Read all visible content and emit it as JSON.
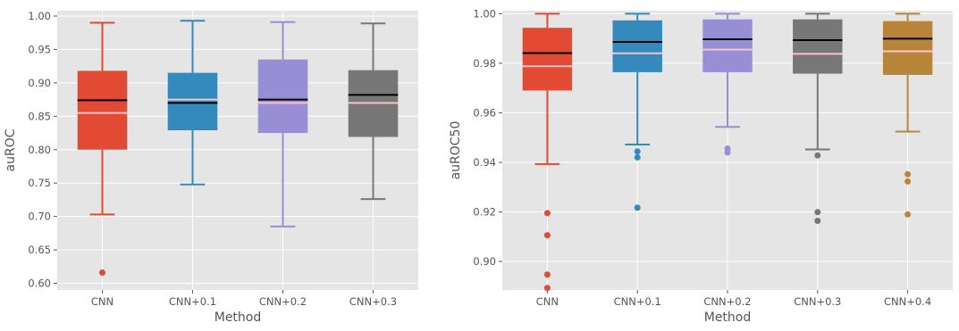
{
  "figure": {
    "background": "#ffffff",
    "panel_background": "#e5e5e5",
    "grid_color": "#ffffff",
    "style": "ggplot"
  },
  "chart_data": [
    {
      "type": "box",
      "xlabel": "Method",
      "ylabel": "auROC",
      "ylim": [
        0.59,
        1.008
      ],
      "yticks": [
        "0.60",
        "0.65",
        "0.70",
        "0.75",
        "0.80",
        "0.85",
        "0.90",
        "0.95",
        "1.00"
      ],
      "ytick_values": [
        0.6,
        0.65,
        0.7,
        0.75,
        0.8,
        0.85,
        0.9,
        0.95,
        1.0
      ],
      "grid": true,
      "median_color": "#000000",
      "mean_color": "#ffc0cb",
      "boxes": [
        {
          "label": "CNN",
          "color": "#e24a33",
          "whisker_low": 0.703,
          "q1": 0.8,
          "median": 0.874,
          "mean": 0.855,
          "q3": 0.918,
          "whisker_high": 0.99,
          "outliers": [
            0.616
          ]
        },
        {
          "label": "CNN+0.1",
          "color": "#348abd",
          "whisker_low": 0.748,
          "q1": 0.829,
          "median": 0.87,
          "mean": 0.875,
          "q3": 0.915,
          "whisker_high": 0.993,
          "outliers": []
        },
        {
          "label": "CNN+0.2",
          "color": "#988ed5",
          "whisker_low": 0.685,
          "q1": 0.825,
          "median": 0.875,
          "mean": 0.87,
          "q3": 0.935,
          "whisker_high": 0.991,
          "outliers": []
        },
        {
          "label": "CNN+0.3",
          "color": "#777777",
          "whisker_low": 0.726,
          "q1": 0.819,
          "median": 0.882,
          "mean": 0.87,
          "q3": 0.919,
          "whisker_high": 0.989,
          "outliers": []
        }
      ]
    },
    {
      "type": "box",
      "xlabel": "Method",
      "ylabel": "auROC50",
      "ylim": [
        0.8885,
        1.0012
      ],
      "yticks": [
        "0.90",
        "0.92",
        "0.94",
        "0.96",
        "0.98",
        "1.00"
      ],
      "ytick_values": [
        0.9,
        0.92,
        0.94,
        0.96,
        0.98,
        1.0
      ],
      "grid": true,
      "median_color": "#000000",
      "mean_color": "#ffc0cb",
      "boxes": [
        {
          "label": "CNN",
          "color": "#e24a33",
          "whisker_low": 0.9393,
          "q1": 0.969,
          "median": 0.9841,
          "mean": 0.9788,
          "q3": 0.9943,
          "whisker_high": 1.0,
          "outliers": [
            0.9195,
            0.9106,
            0.8947,
            0.8893
          ]
        },
        {
          "label": "CNN+0.1",
          "color": "#348abd",
          "whisker_low": 0.9472,
          "q1": 0.9764,
          "median": 0.9886,
          "mean": 0.984,
          "q3": 0.9973,
          "whisker_high": 1.0,
          "outliers": [
            0.9444,
            0.942,
            0.9217
          ]
        },
        {
          "label": "CNN+0.2",
          "color": "#988ed5",
          "whisker_low": 0.9543,
          "q1": 0.9764,
          "median": 0.9897,
          "mean": 0.9855,
          "q3": 0.9977,
          "whisker_high": 1.0,
          "outliers": [
            0.9456,
            0.944
          ]
        },
        {
          "label": "CNN+0.3",
          "color": "#777777",
          "whisker_low": 0.9452,
          "q1": 0.9758,
          "median": 0.9893,
          "mean": 0.9838,
          "q3": 0.9977,
          "whisker_high": 1.0,
          "outliers": [
            0.9428,
            0.9199,
            0.9164
          ]
        },
        {
          "label": "CNN+0.4",
          "color": "#b8863b",
          "whisker_low": 0.9524,
          "q1": 0.9753,
          "median": 0.9899,
          "mean": 0.9848,
          "q3": 0.997,
          "whisker_high": 1.0,
          "outliers": [
            0.9352,
            0.9323,
            0.919
          ]
        }
      ]
    }
  ]
}
